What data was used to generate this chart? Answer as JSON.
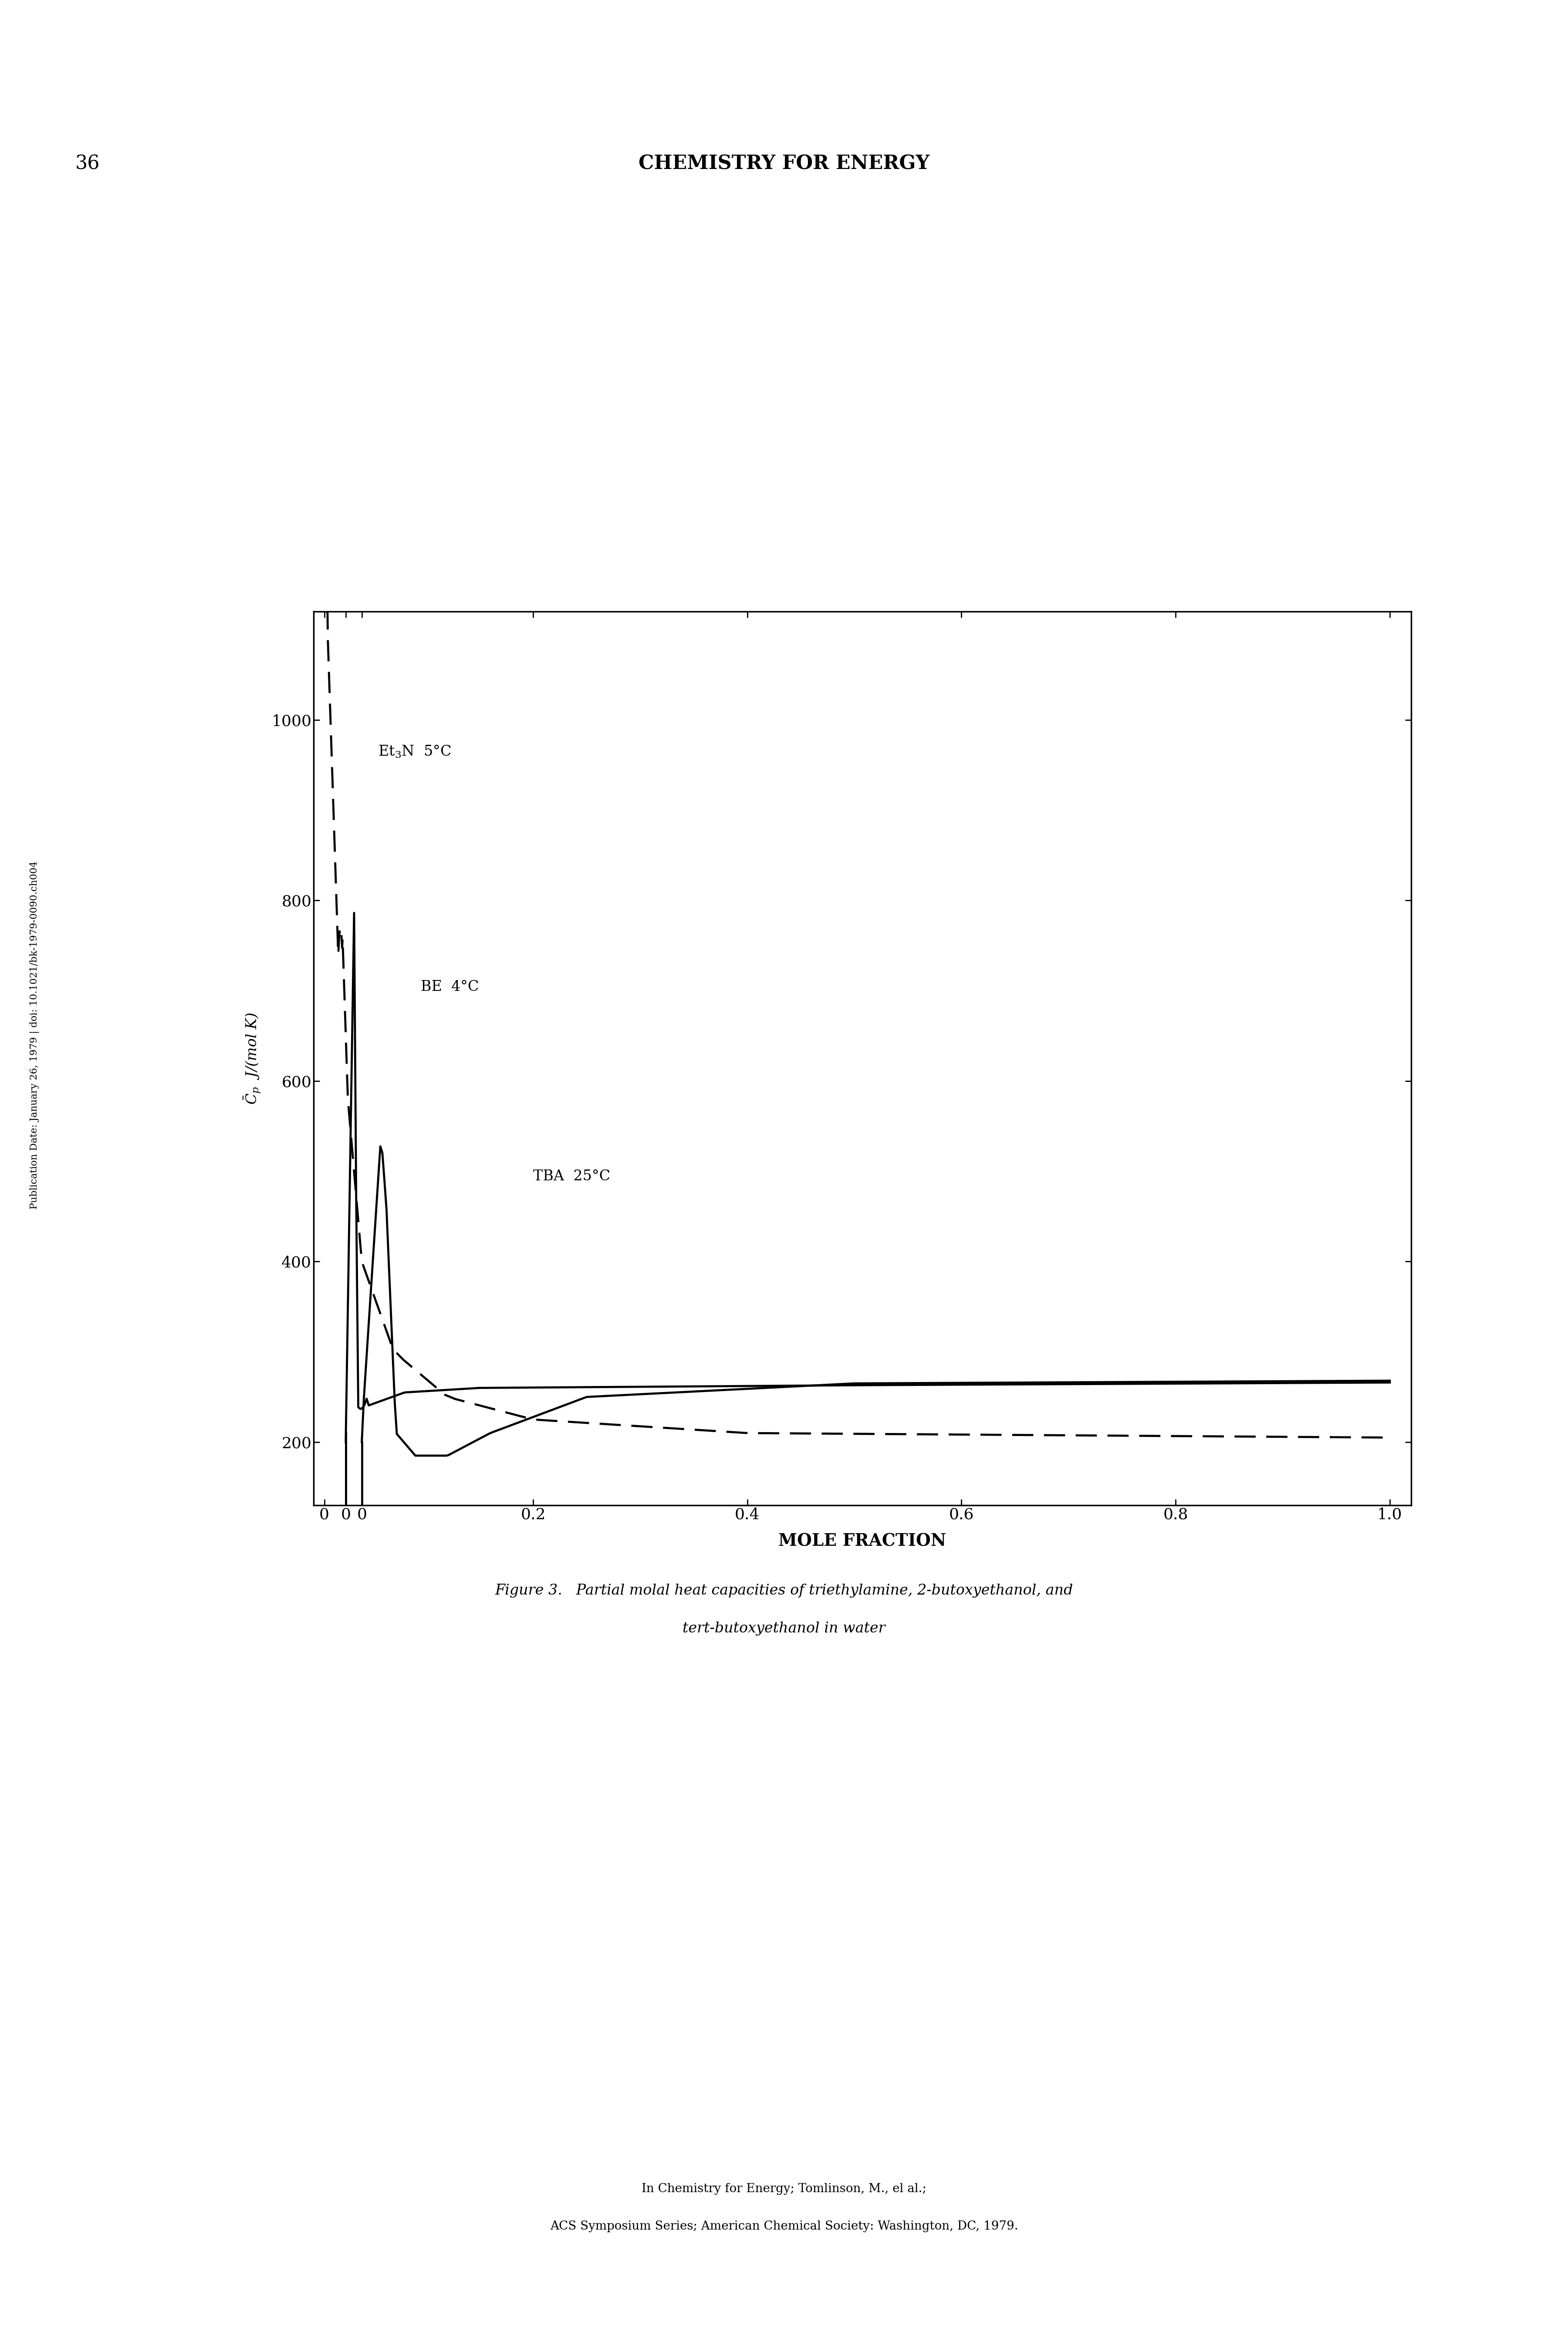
{
  "title_top_left": "36",
  "title_top_right": "CHEMISTRY FOR ENERGY",
  "ylabel": "$\\bar{C}_p$  J/(mol K)",
  "xlabel": "MOLE FRACTION",
  "label_Et3N": "Et$_3$N  5°C",
  "label_BE": "BE  4°C",
  "label_TBA": "TBA  25°C",
  "caption_line1": "Figure 3.   Partial molal heat capacities of triethylamine, 2-butoxyethanol, and",
  "caption_line2": "tert-butoxyethanol in water",
  "footer_line1": "In Chemistry for Energy; Tomlinson, M., el al.;",
  "footer_line2": "ACS Symposium Series; American Chemical Society: Washington, DC, 1979.",
  "side_text": "Publication Date: January 26, 1979 | doi: 10.1021/bk-1979-0090.ch004",
  "background_color": "#ffffff"
}
